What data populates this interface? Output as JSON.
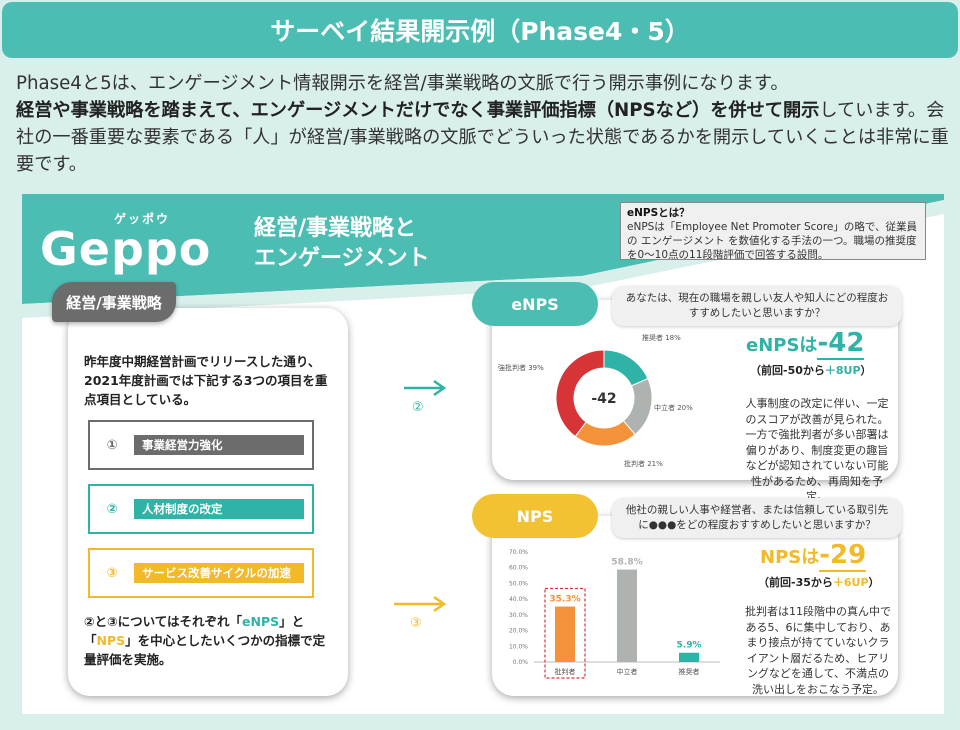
{
  "header": {
    "title": "サーベイ結果開示例（Phase4・5）"
  },
  "intro": {
    "line1": "Phase4と5は、エンゲージメント情報開示を経営/事業戦略の文脈で行う開示事例になります。",
    "bold": "経営や事業戦略を踏まえて、エンゲージメントだけでなく事業評価指標（NPSなど）を併せて開示",
    "rest": "しています。会社の一番重要な要素である「人」が経営/事業戦略の文脈でどういった状態であるかを開示していくことは非常に重要です。"
  },
  "logo": {
    "kana": "ゲッポウ",
    "text": "Geppo"
  },
  "card_header": {
    "line1": "経営/事業戦略と",
    "line2": "エンゲージメント"
  },
  "definition": {
    "title": "eNPSとは？",
    "body": "eNPSは「Employee Net Promoter Score」の略で、従業員の エンゲージメント を数値化する手法の一つ。職場の推奨度を0〜10点の11段階評価で回答する設問。"
  },
  "strategy": {
    "tag": "経営/事業戦略",
    "text": "昨年度中期経営計画でリリースした通り、2021年度計画では下記する3つの項目を重点項目としている。",
    "items": [
      {
        "num": "①",
        "label": "事業経営力強化",
        "color": "#6c6c6c"
      },
      {
        "num": "②",
        "label": "人材制度の改定",
        "color": "#2fb3a6"
      },
      {
        "num": "③",
        "label": "サービス改善サイクルの加速",
        "color": "#f2b928"
      }
    ],
    "bottom_pre": "②と③についてはそれぞれ「",
    "bottom_enps": "eNPS",
    "bottom_mid": "」と「",
    "bottom_nps": "NPS",
    "bottom_post": "」を中心としたいくつかの指標で定量評価を実施。"
  },
  "arrows": {
    "enps_num": "②",
    "nps_num": "③"
  },
  "enps": {
    "pill": "eNPS",
    "question": "あなたは、現在の職場を親しい友人や知人にどの程度おすすめしたいと思いますか？",
    "score_label": "eNPSは",
    "score_value": "-42",
    "prev_pre": "（前回-50から",
    "prev_delta": "＋8UP",
    "prev_post": "）",
    "description": "人事制度の改定に伴い、一定のスコアが改善が見られた。一方で強批判者が多い部署は偏りがあり、制度変更の趣旨などが認知されていない可能性があるため、再周知を予定。",
    "center_label": "-42",
    "colors": {
      "teal": "#2fb3a6",
      "yellow": "#f2b928"
    }
  },
  "nps": {
    "pill": "NPS",
    "question": "他社の親しい人事や経営者、または信頼している取引先に●●●をどの程度おすすめしたいと思いますか？",
    "score_label": "NPSは",
    "score_value": "-29",
    "prev_pre": "（前回-35から",
    "prev_delta": "＋6UP",
    "prev_post": "）",
    "description": "批判者は11段階中の真ん中である5、6に集中しており、あまり接点が持てていないクライアント層だるため、ヒアリングなどを通して、不満点の洗い出しをおこなう予定。"
  },
  "chart_data": [
    {
      "type": "pie",
      "title": "",
      "center_text": "-42",
      "slices": [
        {
          "label": "推奨者 18%",
          "value": 18,
          "color": "#2fb3a6"
        },
        {
          "label": "中立者 20%",
          "value": 20,
          "color": "#aeb3b0"
        },
        {
          "label": "批判者 21%",
          "value": 21,
          "color": "#f49239"
        },
        {
          "label": "強批判者 39%",
          "value": 39,
          "color": "#d63437"
        }
      ]
    },
    {
      "type": "bar",
      "title": "",
      "categories": [
        "批判者",
        "中立者",
        "推奨者"
      ],
      "values": [
        35.3,
        58.8,
        5.9
      ],
      "value_labels": [
        "35.3%",
        "58.8%",
        "5.9%"
      ],
      "colors": [
        "#f49239",
        "#aeb3b0",
        "#2fb3a6"
      ],
      "label_colors": [
        "#f49239",
        "#aeb3b0",
        "#2fb3a6"
      ],
      "ylim": [
        0,
        70
      ],
      "yticks": [
        "0.0%",
        "10.0%",
        "20.0%",
        "30.0%",
        "40.0%",
        "50.0%",
        "60.0%",
        "70.0%"
      ],
      "highlight_category": "批判者"
    }
  ]
}
